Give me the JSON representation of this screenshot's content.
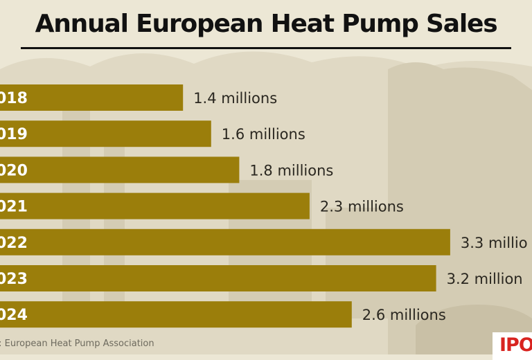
{
  "title": "Annual European Heat Pump Sales",
  "source": "ce: European Heat Pump Association",
  "logo_text": "IPO",
  "colors": {
    "background": "#ece7d5",
    "bar": "#9b7e0b",
    "bar_text": "#ffffff",
    "value_text": "#2a2720"
  },
  "chart_data": {
    "type": "bar",
    "orientation": "horizontal",
    "title": "Annual European Heat Pump Sales",
    "categories": [
      "018",
      "019",
      "020",
      "021",
      "022",
      "023",
      "024"
    ],
    "values": [
      1.4,
      1.6,
      1.8,
      2.3,
      3.3,
      3.2,
      2.6
    ],
    "value_labels": [
      "1.4 millions",
      "1.6 millions",
      "1.8 millions",
      "2.3 millions",
      "3.3 millio",
      "3.2 million",
      "2.6 millions"
    ],
    "unit": "millions",
    "grid": false,
    "legend": "none"
  }
}
